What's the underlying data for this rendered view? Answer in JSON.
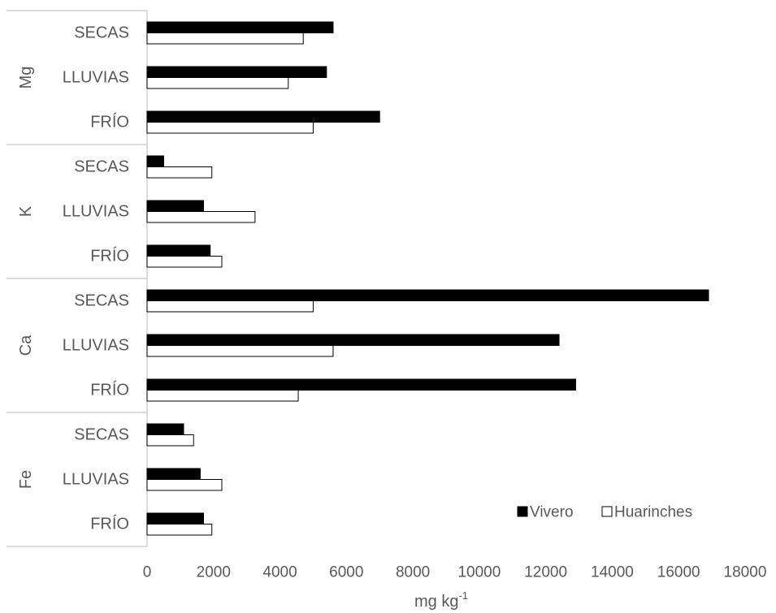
{
  "chart_data": {
    "type": "bar",
    "orientation": "horizontal",
    "groups": [
      {
        "name": "Mg",
        "categories": [
          "SECAS",
          "LLUVIAS",
          "FRÍO"
        ]
      },
      {
        "name": "K",
        "categories": [
          "SECAS",
          "LLUVIAS",
          "FRÍO"
        ]
      },
      {
        "name": "Ca",
        "categories": [
          "SECAS",
          "LLUVIAS",
          "FRÍO"
        ]
      },
      {
        "name": "Fe",
        "categories": [
          "SECAS",
          "LLUVIAS",
          "FRÍO"
        ]
      }
    ],
    "series": [
      {
        "name": "Vivero",
        "color": "#000000",
        "values": [
          5600,
          5400,
          7000,
          500,
          1700,
          1900,
          16900,
          12400,
          12900,
          1100,
          1600,
          1700
        ]
      },
      {
        "name": "Huarinches",
        "color": "#ffffff",
        "values": [
          4700,
          4250,
          5000,
          1950,
          3250,
          2250,
          5000,
          5600,
          4550,
          1400,
          2250,
          1950
        ]
      }
    ],
    "xlabel": "mg kg",
    "xlabel_superscript": "-1",
    "xlim": [
      0,
      18000
    ],
    "xticks": [
      "0",
      "2000",
      "4000",
      "6000",
      "8000",
      "10000",
      "12000",
      "14000",
      "16000",
      "18000"
    ],
    "grid": false,
    "legend_position": "bottom-right"
  }
}
